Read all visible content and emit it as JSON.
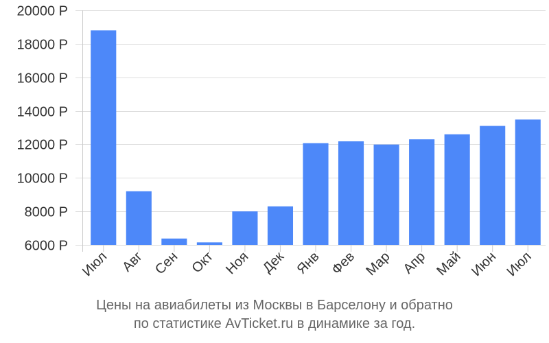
{
  "chart_data": {
    "type": "bar",
    "categories": [
      "Июл",
      "Авг",
      "Сен",
      "Окт",
      "Ноя",
      "Дек",
      "Янв",
      "Фев",
      "Мар",
      "Апр",
      "Май",
      "Июн",
      "Июл"
    ],
    "values": [
      18800,
      9200,
      6380,
      6150,
      8000,
      8300,
      12070,
      12180,
      11990,
      12300,
      12600,
      13100,
      13480
    ],
    "ylim": [
      6000,
      20000
    ],
    "yticks": [
      6000,
      8000,
      10000,
      12000,
      14000,
      16000,
      18000,
      20000
    ],
    "ytick_suffix": " Р",
    "grid": true,
    "bar_color": "#4d88f9",
    "grid_color": "#dddddd",
    "axis_color": "#cccccc",
    "label_color": "#333333"
  },
  "caption": {
    "line1": "Цены на авиабилеты из Москвы в Барселону и обратно",
    "line2": "по статистике AvTicket.ru в динамике за год."
  }
}
